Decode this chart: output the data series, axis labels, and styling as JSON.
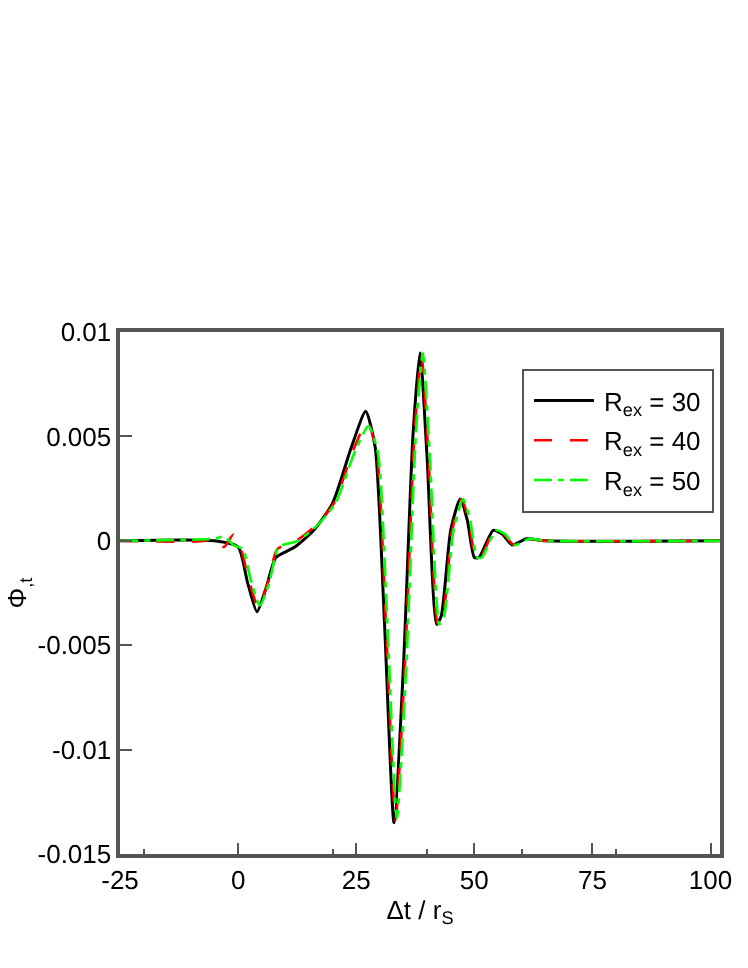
{
  "chart_data": {
    "type": "line",
    "xlabel": "Δt / r$_{S}$",
    "ylabel": "Φ$_{,t}$",
    "xlim": [
      -25,
      102
    ],
    "xticks": [
      -25,
      0,
      25,
      50,
      75,
      100
    ],
    "ylim": [
      -0.015,
      0.01
    ],
    "yticks": [
      -0.015,
      -0.01,
      -0.005,
      0,
      0.005,
      0.01
    ],
    "legend": "top right",
    "marker": "none",
    "series": [
      {
        "name": "R$_{ex}$ = 30",
        "color": "#000000",
        "line_style": "solid",
        "x": [
          -25,
          -5,
          0,
          2,
          4,
          6,
          8,
          12,
          16,
          20,
          24,
          27,
          29,
          31,
          33,
          35,
          37,
          38.5,
          40,
          42,
          43,
          45,
          47,
          48.5,
          50,
          51,
          54,
          56,
          58,
          61,
          65,
          102
        ],
        "values": [
          0,
          0,
          -0.0003,
          -0.002,
          -0.0034,
          -0.0022,
          -0.0008,
          -0.0003,
          0.0005,
          0.0018,
          0.0045,
          0.0062,
          0.0045,
          -0.004,
          -0.0135,
          -0.006,
          0.005,
          0.009,
          0.004,
          -0.004,
          -0.0036,
          0.0005,
          0.002,
          0.001,
          -0.0008,
          -0.0008,
          0.0005,
          0.0003,
          -0.0002,
          0.0001,
          0,
          0
        ]
      },
      {
        "name": "R$_{ex}$ = 40",
        "color": "#ff0000",
        "line_style": "dashed",
        "x": [
          -25,
          -7,
          -5,
          -3,
          -1,
          0.5,
          2.3,
          4.3,
          6.3,
          8.3,
          12.3,
          16.3,
          20.3,
          24.3,
          27.3,
          29.3,
          31.3,
          33.3,
          35.3,
          37.3,
          38.8,
          40.3,
          42.3,
          43.3,
          45.3,
          47.3,
          48.8,
          50.3,
          51.3,
          54.3,
          56.3,
          58.3,
          61.3,
          65,
          102
        ],
        "values": [
          0,
          0,
          0.0002,
          -0.0003,
          0.0003,
          -0.0003,
          -0.0019,
          -0.0032,
          -0.002,
          -0.0004,
          0,
          0.0007,
          0.0018,
          0.0043,
          0.0057,
          0.0043,
          -0.004,
          -0.0134,
          -0.006,
          0.005,
          0.0089,
          0.004,
          -0.004,
          -0.0037,
          0.0005,
          0.002,
          0.001,
          -0.0008,
          -0.0008,
          0.0005,
          0.0003,
          -0.0002,
          0.0001,
          0,
          0
        ]
      },
      {
        "name": "R$_{ex}$ = 50",
        "color": "#00ff00",
        "line_style": "dashdot",
        "x": [
          -25,
          -5,
          -3,
          -1,
          1,
          2.6,
          4.6,
          6.6,
          8.6,
          12.6,
          16.6,
          20.6,
          24.6,
          27.6,
          29.6,
          31.6,
          33.6,
          35.6,
          37.6,
          39.1,
          40.6,
          42.6,
          43.6,
          45.6,
          47.6,
          49.1,
          50.6,
          51.6,
          54.6,
          56.6,
          58.6,
          61.6,
          65,
          102
        ],
        "values": [
          0,
          0.0001,
          0.0002,
          -0.0002,
          -0.0004,
          -0.0018,
          -0.0031,
          -0.002,
          -0.0003,
          0,
          0.0007,
          0.0018,
          0.0042,
          0.0055,
          0.0042,
          -0.004,
          -0.0133,
          -0.006,
          0.005,
          0.009,
          0.004,
          -0.004,
          -0.0036,
          0.0005,
          0.002,
          0.001,
          -0.0008,
          -0.0008,
          0.0005,
          0.0003,
          -0.0002,
          0.0001,
          0,
          0
        ]
      }
    ]
  }
}
